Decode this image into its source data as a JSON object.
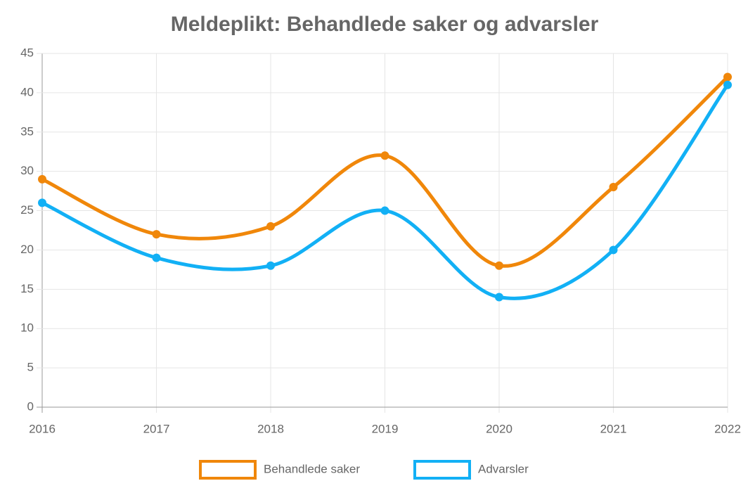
{
  "chart_data": {
    "type": "line",
    "title": "Meldeplikt: Behandlede saker og advarsler",
    "categories": [
      "2016",
      "2017",
      "2018",
      "2019",
      "2020",
      "2021",
      "2022"
    ],
    "series": [
      {
        "name": "Behandlede saker",
        "color": "#f0870a",
        "values": [
          29,
          22,
          23,
          32,
          18,
          28,
          42
        ]
      },
      {
        "name": "Advarsler",
        "color": "#12b0f5",
        "values": [
          26,
          19,
          18,
          25,
          14,
          20,
          41
        ]
      }
    ],
    "ylim": [
      0,
      45
    ],
    "yticks": [
      0,
      5,
      10,
      15,
      20,
      25,
      30,
      35,
      40,
      45
    ],
    "grid": true,
    "legend": "bottom"
  }
}
